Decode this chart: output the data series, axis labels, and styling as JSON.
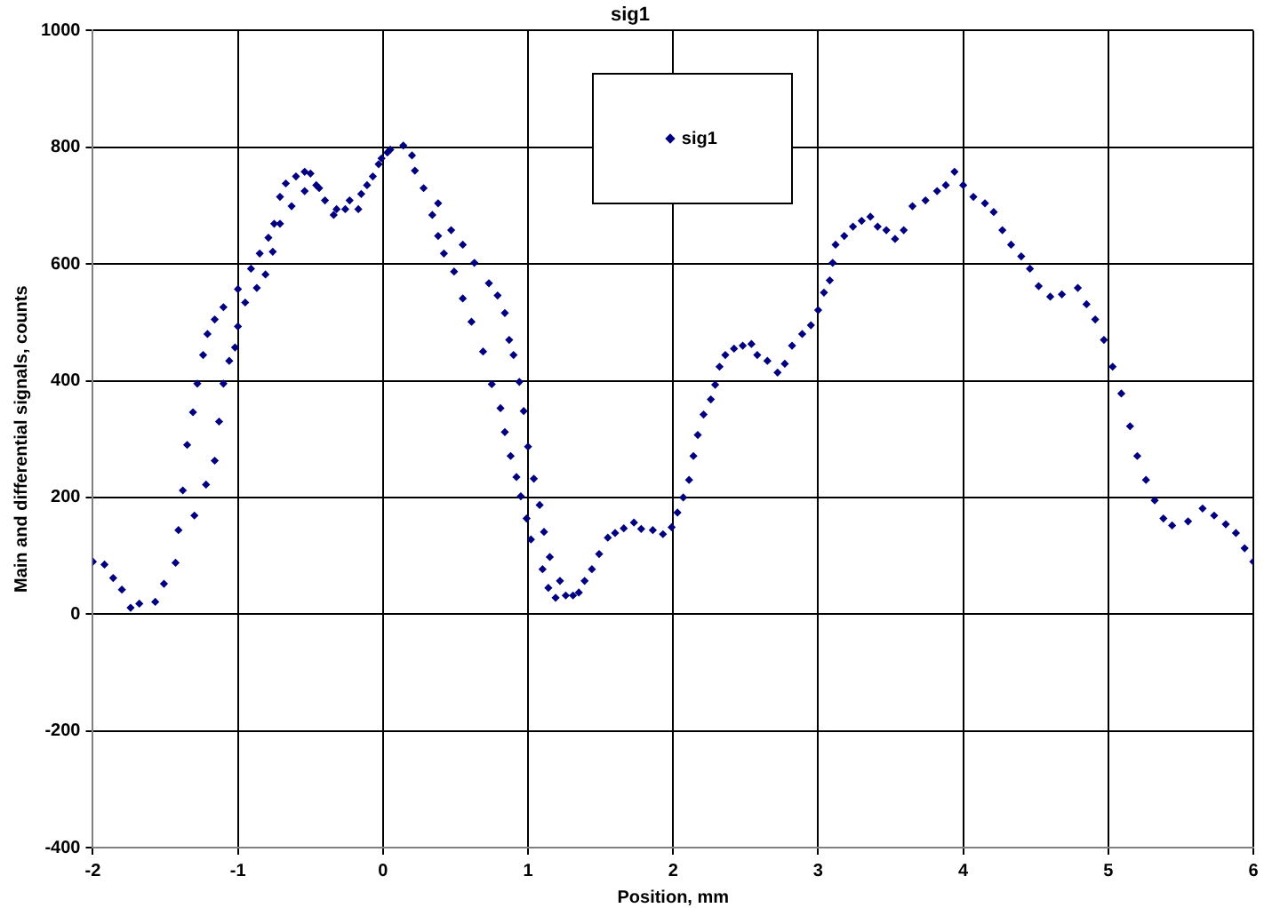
{
  "chart_data": {
    "type": "scatter",
    "title": "sig1",
    "xlabel": "Position, mm",
    "ylabel": "Main and differential signals, counts",
    "xlim": [
      -2,
      6
    ],
    "xticks": [
      -2,
      -1,
      0,
      1,
      2,
      3,
      4,
      5,
      6
    ],
    "ylim": [
      -400,
      1000
    ],
    "yticks": [
      -400,
      -200,
      0,
      200,
      400,
      600,
      800,
      1000
    ],
    "grid": true,
    "legend": "top",
    "marker": "diamond",
    "series": [
      {
        "name": "sig1",
        "color": "#000080",
        "x": [
          -2.0,
          -1.92,
          -1.86,
          -1.8,
          -1.74,
          -1.68,
          -1.57,
          -1.51,
          -1.43,
          -1.41,
          -1.38,
          -1.35,
          -1.31,
          -1.28,
          -1.24,
          -1.21,
          -1.16,
          -1.1,
          -1.0,
          -0.91,
          -0.85,
          -0.79,
          -0.75,
          -0.71,
          -0.67,
          -0.6,
          -0.54,
          -0.5,
          -0.44,
          -0.4,
          -0.32,
          -0.23,
          -0.15,
          -0.07,
          -0.01,
          0.05,
          0.14,
          0.2,
          -1.3,
          -1.22,
          -1.16,
          -1.13,
          -1.1,
          -1.06,
          -1.02,
          -1.0,
          -0.95,
          -0.87,
          -0.81,
          -0.76,
          -0.71,
          -0.63,
          -0.54,
          -0.46,
          -0.34,
          -0.26,
          -0.17,
          -0.11,
          -0.03,
          0.03,
          0.22,
          0.28,
          0.34,
          0.38,
          0.42,
          0.49,
          0.55,
          0.61,
          0.69,
          0.75,
          0.81,
          0.84,
          0.88,
          0.92,
          0.95,
          0.99,
          1.02,
          1.1,
          1.14,
          1.19,
          0.38,
          0.47,
          0.55,
          0.63,
          0.73,
          0.79,
          0.84,
          0.87,
          0.9,
          0.94,
          0.97,
          1.0,
          1.04,
          1.08,
          1.11,
          1.15,
          1.22,
          1.26,
          1.31,
          1.35,
          1.39,
          1.44,
          1.49,
          1.55,
          1.6,
          1.66,
          1.73,
          1.78,
          1.86,
          1.93,
          1.99,
          2.03,
          2.07,
          2.11,
          2.14,
          2.17,
          2.21,
          2.26,
          2.29,
          2.32,
          2.36,
          2.42,
          2.48,
          2.54,
          2.58,
          2.65,
          2.72,
          2.77,
          2.82,
          2.89,
          2.95,
          3.0,
          3.04,
          3.08,
          3.1,
          3.12,
          3.18,
          3.24,
          3.3,
          3.36,
          3.41,
          3.47,
          3.53,
          3.59,
          3.65,
          3.74,
          3.82,
          3.88,
          3.94,
          4.0,
          4.07,
          4.15,
          4.21,
          4.27,
          4.33,
          4.4,
          4.46,
          4.52,
          4.6,
          4.68,
          4.79,
          4.85,
          4.91,
          4.97,
          5.03,
          5.09,
          5.15,
          5.2,
          5.26,
          5.32,
          5.38,
          5.44,
          5.55,
          5.65,
          5.73,
          5.81,
          5.88,
          5.94,
          6.0
        ],
        "values": [
          90,
          85,
          62,
          42,
          11,
          18,
          21,
          52,
          88,
          144,
          212,
          290,
          346,
          395,
          444,
          480,
          505,
          526,
          557,
          592,
          618,
          645,
          669,
          715,
          738,
          750,
          758,
          755,
          730,
          709,
          694,
          709,
          720,
          750,
          781,
          796,
          803,
          786,
          169,
          222,
          263,
          330,
          395,
          434,
          457,
          493,
          534,
          559,
          582,
          621,
          669,
          699,
          725,
          735,
          684,
          694,
          694,
          735,
          771,
          791,
          760,
          730,
          684,
          648,
          618,
          587,
          541,
          501,
          450,
          394,
          353,
          312,
          271,
          235,
          202,
          164,
          128,
          77,
          45,
          28,
          704,
          658,
          633,
          602,
          567,
          546,
          516,
          470,
          444,
          398,
          348,
          287,
          232,
          187,
          141,
          98,
          57,
          32,
          32,
          37,
          57,
          77,
          103,
          131,
          139,
          147,
          157,
          146,
          144,
          137,
          149,
          174,
          200,
          230,
          271,
          307,
          342,
          368,
          393,
          424,
          444,
          455,
          460,
          463,
          444,
          434,
          414,
          429,
          460,
          480,
          495,
          521,
          551,
          572,
          602,
          633,
          648,
          664,
          674,
          681,
          664,
          658,
          643,
          658,
          699,
          709,
          725,
          735,
          758,
          735,
          715,
          704,
          689,
          658,
          633,
          613,
          592,
          562,
          544,
          548,
          559,
          531,
          505,
          470,
          424,
          378,
          322,
          271,
          230,
          195,
          164,
          152,
          159,
          181,
          169,
          154,
          139,
          113,
          90
        ]
      }
    ]
  }
}
